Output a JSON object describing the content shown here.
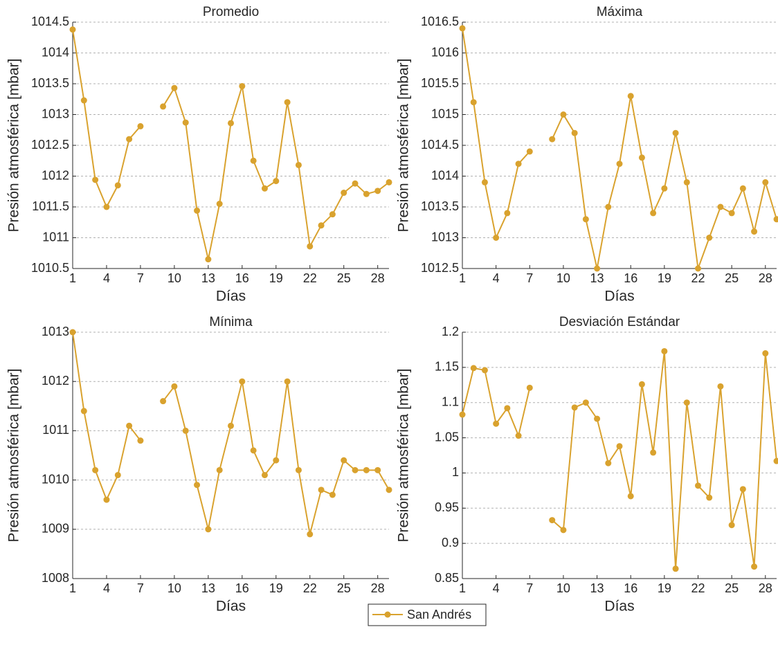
{
  "chart_data": [
    {
      "type": "line",
      "title": "Promedio",
      "xlabel": "Días",
      "ylabel": "Presión atmosférica [mbar]",
      "x": [
        1,
        2,
        3,
        4,
        5,
        6,
        7,
        8,
        9,
        10,
        11,
        12,
        13,
        14,
        15,
        16,
        17,
        18,
        19,
        20,
        21,
        22,
        23,
        24,
        25,
        26,
        27,
        28,
        29
      ],
      "values": [
        1014.38,
        1013.23,
        1011.94,
        1011.5,
        1011.85,
        1012.6,
        1012.81,
        null,
        1013.13,
        1013.43,
        1012.87,
        1011.44,
        1010.65,
        1011.55,
        1012.86,
        1013.46,
        1012.25,
        1011.8,
        1011.92,
        1013.2,
        1012.18,
        1010.86,
        1011.2,
        1011.38,
        1011.73,
        1011.88,
        1011.71,
        1011.76,
        1011.9
      ],
      "color": "#d9a22e",
      "xlim": [
        1,
        29
      ],
      "xticks": [
        1,
        4,
        7,
        10,
        13,
        16,
        19,
        22,
        25,
        28
      ],
      "ylim": [
        1010.5,
        1014.5
      ],
      "yticks": [
        1010.5,
        1011,
        1011.5,
        1012,
        1012.5,
        1013,
        1013.5,
        1014,
        1014.5
      ],
      "grid": true
    },
    {
      "type": "line",
      "title": "Máxima",
      "xlabel": "Días",
      "ylabel": "Presión atmosférica [mbar]",
      "x": [
        1,
        2,
        3,
        4,
        5,
        6,
        7,
        8,
        9,
        10,
        11,
        12,
        13,
        14,
        15,
        16,
        17,
        18,
        19,
        20,
        21,
        22,
        23,
        24,
        25,
        26,
        27,
        28,
        29
      ],
      "values": [
        1016.4,
        1015.2,
        1013.9,
        1013.0,
        1013.4,
        1014.2,
        1014.4,
        null,
        1014.6,
        1015.0,
        1014.7,
        1013.3,
        1012.5,
        1013.5,
        1014.2,
        1015.3,
        1014.3,
        1013.4,
        1013.8,
        1014.7,
        1013.9,
        1012.5,
        1013.0,
        1013.5,
        1013.4,
        1013.8,
        1013.1,
        1013.9,
        1013.3
      ],
      "color": "#d9a22e",
      "xlim": [
        1,
        29
      ],
      "xticks": [
        1,
        4,
        7,
        10,
        13,
        16,
        19,
        22,
        25,
        28
      ],
      "ylim": [
        1012.5,
        1016.5
      ],
      "yticks": [
        1012.5,
        1013,
        1013.5,
        1014,
        1014.5,
        1015,
        1015.5,
        1016,
        1016.5
      ],
      "grid": true
    },
    {
      "type": "line",
      "title": "Mínima",
      "xlabel": "Días",
      "ylabel": "Presión atmosférica [mbar]",
      "x": [
        1,
        2,
        3,
        4,
        5,
        6,
        7,
        8,
        9,
        10,
        11,
        12,
        13,
        14,
        15,
        16,
        17,
        18,
        19,
        20,
        21,
        22,
        23,
        24,
        25,
        26,
        27,
        28,
        29
      ],
      "values": [
        1013.0,
        1011.4,
        1010.2,
        1009.6,
        1010.1,
        1011.1,
        1010.8,
        null,
        1011.6,
        1011.9,
        1011.0,
        1009.9,
        1009.0,
        1010.2,
        1011.1,
        1012.0,
        1010.6,
        1010.1,
        1010.4,
        1012.0,
        1010.2,
        1008.9,
        1009.8,
        1009.7,
        1010.4,
        1010.2,
        1010.2,
        1010.2,
        1009.8
      ],
      "color": "#d9a22e",
      "xlim": [
        1,
        29
      ],
      "xticks": [
        1,
        4,
        7,
        10,
        13,
        16,
        19,
        22,
        25,
        28
      ],
      "ylim": [
        1008,
        1013
      ],
      "yticks": [
        1008,
        1009,
        1010,
        1011,
        1012,
        1013
      ],
      "grid": true
    },
    {
      "type": "line",
      "title": "Desviación Estándar",
      "xlabel": "Días",
      "ylabel": "Presión atmosférica [mbar]",
      "x": [
        1,
        2,
        3,
        4,
        5,
        6,
        7,
        8,
        9,
        10,
        11,
        12,
        13,
        14,
        15,
        16,
        17,
        18,
        19,
        20,
        21,
        22,
        23,
        24,
        25,
        26,
        27,
        28,
        29
      ],
      "values": [
        1.083,
        1.149,
        1.146,
        1.07,
        1.092,
        1.053,
        1.121,
        null,
        0.933,
        0.919,
        1.093,
        1.1,
        1.077,
        1.014,
        1.038,
        0.967,
        1.126,
        1.029,
        1.173,
        0.864,
        1.1,
        0.982,
        0.965,
        1.123,
        0.926,
        0.977,
        0.867,
        1.17,
        1.017
      ],
      "color": "#d9a22e",
      "xlim": [
        1,
        29
      ],
      "xticks": [
        1,
        4,
        7,
        10,
        13,
        16,
        19,
        22,
        25,
        28
      ],
      "ylim": [
        0.85,
        1.2
      ],
      "yticks": [
        0.85,
        0.9,
        0.95,
        1,
        1.05,
        1.1,
        1.15,
        1.2
      ],
      "grid": true
    }
  ],
  "legend": {
    "label": "San Andrés",
    "color": "#d9a22e"
  }
}
